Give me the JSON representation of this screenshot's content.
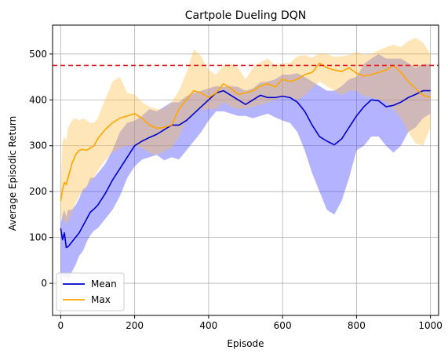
{
  "chart_data": {
    "type": "line",
    "title": "Cartpole Dueling DQN",
    "xlabel": "Episode",
    "ylabel": "Average Episodic Return",
    "xlim": [
      -22,
      1022
    ],
    "ylim": [
      -70,
      563
    ],
    "xticks": [
      0,
      200,
      400,
      600,
      800,
      1000
    ],
    "yticks": [
      0,
      100,
      200,
      300,
      400,
      500
    ],
    "grid": true,
    "legend_position": "lower-left",
    "reference_line": {
      "y": 475,
      "color": "#e41a1c",
      "style": "dashed"
    },
    "x": [
      0,
      5,
      10,
      15,
      20,
      30,
      40,
      50,
      60,
      70,
      80,
      90,
      100,
      120,
      140,
      160,
      180,
      200,
      220,
      240,
      260,
      280,
      300,
      320,
      340,
      360,
      380,
      400,
      420,
      440,
      460,
      480,
      500,
      520,
      540,
      560,
      580,
      600,
      620,
      640,
      660,
      680,
      700,
      720,
      740,
      760,
      780,
      800,
      820,
      840,
      860,
      880,
      900,
      920,
      940,
      960,
      980,
      1000
    ],
    "series": [
      {
        "name": "Mean",
        "color": "#0000cc",
        "band_color": "#4040ff",
        "values": [
          120,
          95,
          110,
          78,
          80,
          90,
          100,
          110,
          125,
          140,
          155,
          162,
          170,
          195,
          225,
          250,
          275,
          300,
          310,
          318,
          325,
          335,
          345,
          345,
          355,
          370,
          385,
          400,
          415,
          420,
          410,
          400,
          390,
          400,
          410,
          405,
          405,
          408,
          405,
          395,
          375,
          345,
          320,
          310,
          302,
          315,
          340,
          365,
          385,
          400,
          398,
          385,
          388,
          395,
          405,
          412,
          420,
          420
        ],
        "lower": [
          -50,
          20,
          10,
          15,
          5,
          25,
          40,
          60,
          70,
          90,
          105,
          115,
          120,
          140,
          160,
          190,
          230,
          255,
          270,
          275,
          280,
          268,
          275,
          270,
          290,
          310,
          330,
          355,
          375,
          375,
          370,
          365,
          365,
          360,
          365,
          370,
          362,
          355,
          350,
          330,
          290,
          240,
          200,
          160,
          150,
          180,
          230,
          290,
          300,
          320,
          320,
          300,
          285,
          300,
          330,
          340,
          360,
          370
        ],
        "upper": [
          130,
          150,
          160,
          145,
          160,
          160,
          170,
          185,
          205,
          210,
          230,
          230,
          240,
          260,
          290,
          330,
          350,
          355,
          365,
          380,
          375,
          385,
          395,
          395,
          408,
          415,
          420,
          425,
          430,
          428,
          430,
          428,
          420,
          425,
          438,
          440,
          445,
          455,
          455,
          458,
          450,
          440,
          430,
          420,
          420,
          430,
          445,
          450,
          478,
          490,
          500,
          490,
          490,
          490,
          480,
          470,
          478,
          478
        ]
      },
      {
        "name": "Max",
        "color": "#ffa500",
        "band_color": "#ffc04d",
        "values": [
          180,
          205,
          220,
          215,
          230,
          260,
          280,
          290,
          292,
          290,
          295,
          300,
          315,
          335,
          350,
          360,
          365,
          370,
          360,
          345,
          338,
          340,
          345,
          380,
          400,
          420,
          415,
          405,
          415,
          435,
          425,
          412,
          415,
          420,
          430,
          435,
          428,
          445,
          440,
          445,
          455,
          460,
          480,
          470,
          465,
          462,
          470,
          458,
          452,
          455,
          460,
          465,
          475,
          460,
          440,
          425,
          410,
          405
        ],
        "lower": [
          150,
          140,
          135,
          130,
          135,
          150,
          175,
          190,
          200,
          210,
          220,
          230,
          245,
          268,
          285,
          295,
          300,
          300,
          295,
          285,
          280,
          288,
          295,
          320,
          355,
          370,
          380,
          380,
          380,
          395,
          385,
          380,
          382,
          385,
          390,
          395,
          400,
          405,
          405,
          400,
          410,
          425,
          440,
          430,
          420,
          410,
          420,
          420,
          408,
          405,
          400,
          395,
          380,
          360,
          330,
          305,
          300,
          340
        ],
        "upper": [
          205,
          310,
          320,
          310,
          340,
          355,
          360,
          355,
          360,
          355,
          350,
          350,
          360,
          400,
          440,
          450,
          415,
          412,
          395,
          385,
          380,
          380,
          395,
          420,
          460,
          510,
          495,
          465,
          455,
          475,
          478,
          470,
          445,
          470,
          482,
          490,
          475,
          480,
          480,
          495,
          498,
          492,
          502,
          500,
          494,
          495,
          498,
          505,
          498,
          500,
          508,
          515,
          520,
          515,
          528,
          535,
          525,
          500
        ]
      }
    ]
  }
}
